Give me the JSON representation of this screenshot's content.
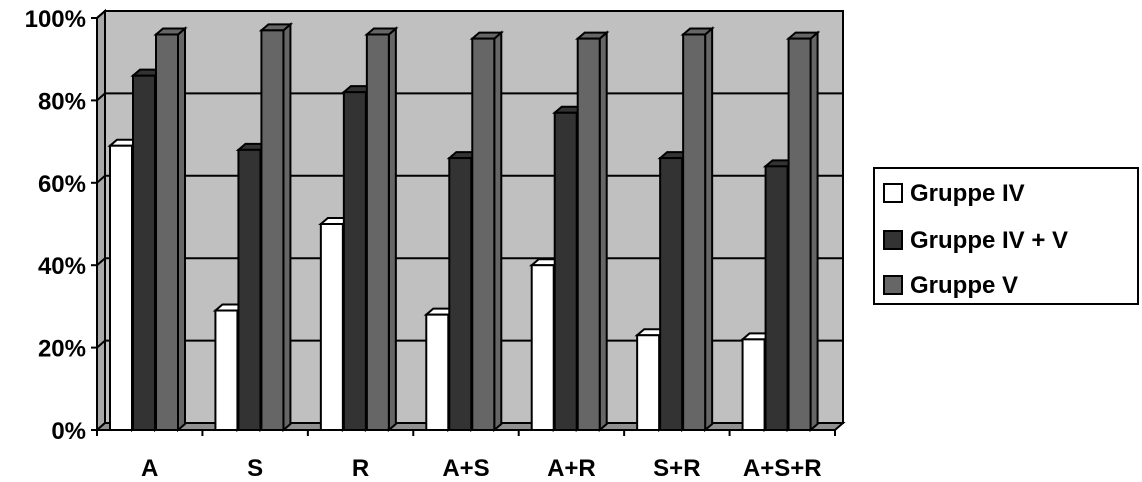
{
  "chart_data": {
    "type": "bar",
    "bar_style": "3d-clustered",
    "categories": [
      "A",
      "S",
      "R",
      "A+S",
      "A+R",
      "S+R",
      "A+S+R"
    ],
    "series": [
      {
        "name": "Gruppe IV",
        "color": "#ffffff",
        "values": [
          69,
          29,
          50,
          28,
          40,
          23,
          22
        ]
      },
      {
        "name": "Gruppe IV + V",
        "color": "#333333",
        "values": [
          86,
          68,
          82,
          66,
          77,
          66,
          64
        ]
      },
      {
        "name": "Gruppe V",
        "color": "#666666",
        "values": [
          96,
          97,
          96,
          95,
          95,
          96,
          95
        ]
      }
    ],
    "y_ticks": [
      "0%",
      "20%",
      "40%",
      "60%",
      "80%",
      "100%"
    ],
    "ylim": [
      0,
      100
    ],
    "grid": true,
    "plot_background": "#c0c0c0",
    "legend_position": "right"
  }
}
